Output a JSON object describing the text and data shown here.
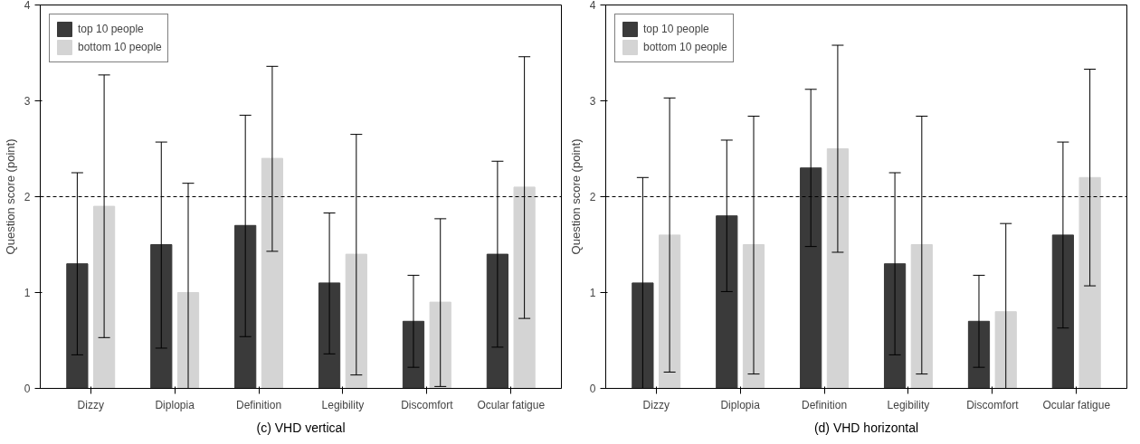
{
  "chart_data": [
    {
      "type": "bar",
      "title": "(c) VHD vertical",
      "ylabel": "Question score (point)",
      "categories": [
        "Dizzy",
        "Diplopia",
        "Definition",
        "Legibility",
        "Discomfort",
        "Ocular fatigue"
      ],
      "ylim": [
        0,
        4
      ],
      "yticks": [
        0,
        1,
        2,
        3,
        4
      ],
      "grid": false,
      "legend": "top left",
      "series": [
        {
          "name": "top 10 people",
          "color": "#3a3a3a",
          "values": [
            1.3,
            1.5,
            1.7,
            1.1,
            0.7,
            1.4
          ],
          "errors": [
            [
              0.35,
              2.25
            ],
            [
              0.42,
              2.57
            ],
            [
              0.54,
              2.85
            ],
            [
              0.36,
              1.83
            ],
            [
              0.22,
              1.18
            ],
            [
              0.43,
              2.37
            ]
          ]
        },
        {
          "name": "bottom 10 people",
          "color": "#d4d4d4",
          "values": [
            1.9,
            1.0,
            2.4,
            1.4,
            0.9,
            2.1
          ],
          "errors": [
            [
              0.53,
              3.27
            ],
            [
              0.0,
              2.14
            ],
            [
              1.43,
              3.36
            ],
            [
              0.14,
              2.65
            ],
            [
              0.02,
              1.77
            ],
            [
              0.73,
              3.46
            ]
          ]
        }
      ],
      "ref_lines": [
        {
          "axis": "y",
          "value": 2,
          "line_style": "dashed"
        }
      ]
    },
    {
      "type": "bar",
      "title": "(d) VHD horizontal",
      "ylabel": "Question score (point)",
      "categories": [
        "Dizzy",
        "Diplopia",
        "Definition",
        "Legibility",
        "Discomfort",
        "Ocular fatigue"
      ],
      "ylim": [
        0,
        4
      ],
      "yticks": [
        0,
        1,
        2,
        3,
        4
      ],
      "grid": false,
      "legend": "top left",
      "series": [
        {
          "name": "top 10 people",
          "color": "#3a3a3a",
          "values": [
            1.1,
            1.8,
            2.3,
            1.3,
            0.7,
            1.6
          ],
          "errors": [
            [
              0.0,
              2.2
            ],
            [
              1.01,
              2.59
            ],
            [
              1.48,
              3.12
            ],
            [
              0.35,
              2.25
            ],
            [
              0.22,
              1.18
            ],
            [
              0.63,
              2.57
            ]
          ]
        },
        {
          "name": "bottom 10 people",
          "color": "#d4d4d4",
          "values": [
            1.6,
            1.5,
            2.5,
            1.5,
            0.8,
            2.2
          ],
          "errors": [
            [
              0.17,
              3.03
            ],
            [
              0.15,
              2.84
            ],
            [
              1.42,
              3.58
            ],
            [
              0.15,
              2.84
            ],
            [
              0.0,
              1.72
            ],
            [
              1.07,
              3.33
            ]
          ]
        }
      ],
      "ref_lines": [
        {
          "axis": "y",
          "value": 2,
          "line_style": "dashed"
        }
      ]
    }
  ]
}
